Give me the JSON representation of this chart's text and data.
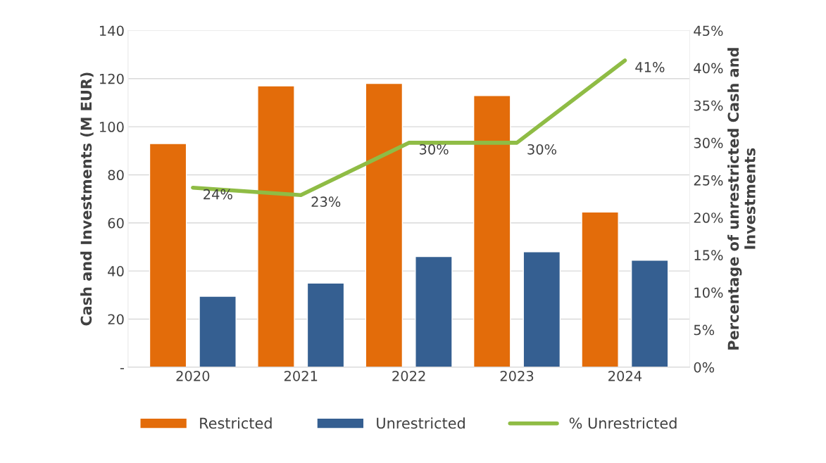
{
  "chart_data": {
    "type": "bar",
    "categories": [
      "2020",
      "2021",
      "2022",
      "2023",
      "2024"
    ],
    "ylabel": "Cash and Investments (M EUR)",
    "y2label": "Percentage of unrestricted Cash and Investments",
    "series": [
      {
        "name": "Restricted",
        "color": "#e36c0a",
        "values": [
          93,
          117,
          118,
          113,
          64.5
        ]
      },
      {
        "name": "Unrestricted",
        "color": "#355f91",
        "values": [
          29.5,
          35,
          46,
          48,
          44.5
        ]
      },
      {
        "name": "% Unrestricted",
        "type": "line",
        "axis": "y2",
        "color": "#8fbc45",
        "values": [
          24,
          23,
          30,
          30,
          41
        ],
        "value_labels": [
          "24%",
          "23%",
          "30%",
          "30%",
          "41%"
        ]
      }
    ],
    "ylim": [
      0,
      140
    ],
    "yticks": [
      {
        "value": 0,
        "label": "-"
      },
      20,
      40,
      60,
      80,
      100,
      120,
      140
    ],
    "y2lim": [
      0,
      45
    ],
    "y2ticks": [
      {
        "value": 0,
        "label": "0%"
      },
      {
        "value": 5,
        "label": "5%"
      },
      {
        "value": 10,
        "label": "10%"
      },
      {
        "value": 15,
        "label": "15%"
      },
      {
        "value": 20,
        "label": "20%"
      },
      {
        "value": 25,
        "label": "25%"
      },
      {
        "value": 30,
        "label": "30%"
      },
      {
        "value": 35,
        "label": "35%"
      },
      {
        "value": 40,
        "label": "40%"
      },
      {
        "value": 45,
        "label": "45%"
      }
    ],
    "grid": "y",
    "legend": "bottom",
    "marker": "none",
    "line_style": "solid"
  }
}
